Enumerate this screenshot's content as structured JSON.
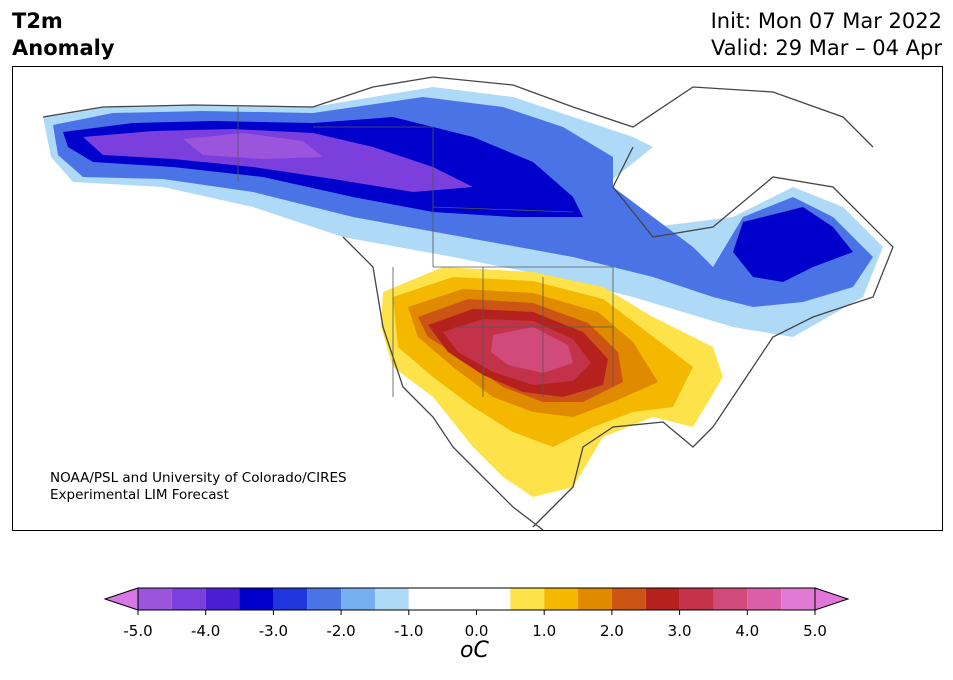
{
  "header": {
    "title_line1": "T2m",
    "title_line2": "Anomaly",
    "init": "Init: Mon 07 Mar 2022",
    "valid": "Valid: 29 Mar – 04 Apr"
  },
  "map": {
    "credit_line1": "NOAA/PSL and University of Colorado/CIRES",
    "credit_line2": "Experimental LIM Forecast"
  },
  "colorbar": {
    "unit": "oC",
    "ticks": [
      "-5.0",
      "-4.0",
      "-3.0",
      "-2.0",
      "-1.0",
      "0.0",
      "1.0",
      "2.0",
      "3.0",
      "4.0",
      "5.0"
    ],
    "levels": [
      -5.0,
      -4.5,
      -4.0,
      -3.5,
      -3.0,
      -2.5,
      -2.0,
      -1.5,
      -1.0,
      -0.5,
      0.5,
      1.0,
      1.5,
      2.0,
      2.5,
      3.0,
      3.5,
      4.0,
      4.5,
      5.0
    ],
    "colors": [
      "#9a55dc",
      "#7a3fdc",
      "#4a1fd4",
      "#0000cc",
      "#2236dd",
      "#4a74e6",
      "#76aff0",
      "#aed9f7",
      "#ffffff",
      "#ffffff",
      "#fde24a",
      "#f4b800",
      "#e08a00",
      "#cc5516",
      "#b5221e",
      "#c4324a",
      "#d04a7a",
      "#da5fa8",
      "#e07ad4"
    ],
    "under_color": "#d778e6",
    "over_color": "#e077d8"
  }
}
